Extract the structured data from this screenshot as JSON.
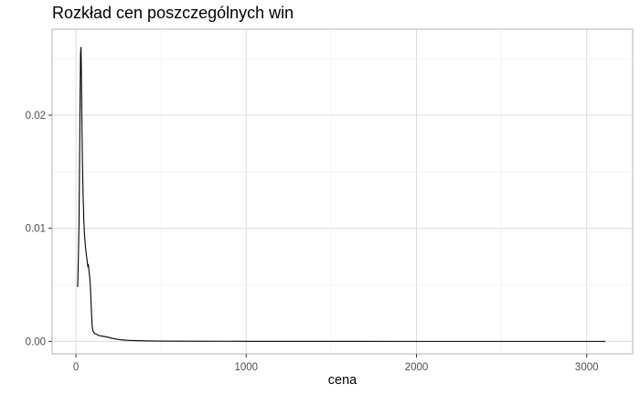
{
  "chart_data": {
    "type": "line",
    "title": "Rozkład cen poszczególnych win",
    "xlabel": "cena",
    "ylabel": "",
    "xlim": [
      -140,
      3270
    ],
    "ylim": [
      -0.0011,
      0.0276
    ],
    "xticks": [
      0,
      1000,
      2000,
      3000
    ],
    "xtick_labels": [
      "0",
      "1000",
      "2000",
      "3000"
    ],
    "yticks": [
      0,
      0.01,
      0.02
    ],
    "ytick_labels": [
      "0.00",
      "0.01",
      "0.02"
    ],
    "grid": true,
    "legend": "none",
    "series": [
      {
        "name": "density",
        "color": "#000000",
        "points": [
          [
            10,
            0.0048
          ],
          [
            14,
            0.0072
          ],
          [
            18,
            0.0105
          ],
          [
            21,
            0.0155
          ],
          [
            24,
            0.021
          ],
          [
            27,
            0.0255
          ],
          [
            30,
            0.026
          ],
          [
            32,
            0.0235
          ],
          [
            35,
            0.0195
          ],
          [
            38,
            0.016
          ],
          [
            42,
            0.013
          ],
          [
            46,
            0.0108
          ],
          [
            50,
            0.0095
          ],
          [
            55,
            0.0085
          ],
          [
            60,
            0.0078
          ],
          [
            65,
            0.0072
          ],
          [
            70,
            0.0066
          ],
          [
            73,
            0.0068
          ],
          [
            76,
            0.0063
          ],
          [
            80,
            0.0058
          ],
          [
            85,
            0.0048
          ],
          [
            90,
            0.003
          ],
          [
            95,
            0.0014
          ],
          [
            100,
            0.0009
          ],
          [
            110,
            0.0007
          ],
          [
            125,
            0.0006
          ],
          [
            140,
            0.0005
          ],
          [
            160,
            0.00045
          ],
          [
            180,
            0.0004
          ],
          [
            200,
            0.00032
          ],
          [
            230,
            0.00022
          ],
          [
            260,
            0.00015
          ],
          [
            300,
            0.0001
          ],
          [
            350,
            7e-05
          ],
          [
            400,
            5e-05
          ],
          [
            500,
            3e-05
          ],
          [
            700,
            2e-05
          ],
          [
            1000,
            1e-05
          ],
          [
            1500,
            5e-06
          ],
          [
            2000,
            2e-06
          ],
          [
            3110,
            1e-06
          ]
        ]
      }
    ]
  }
}
